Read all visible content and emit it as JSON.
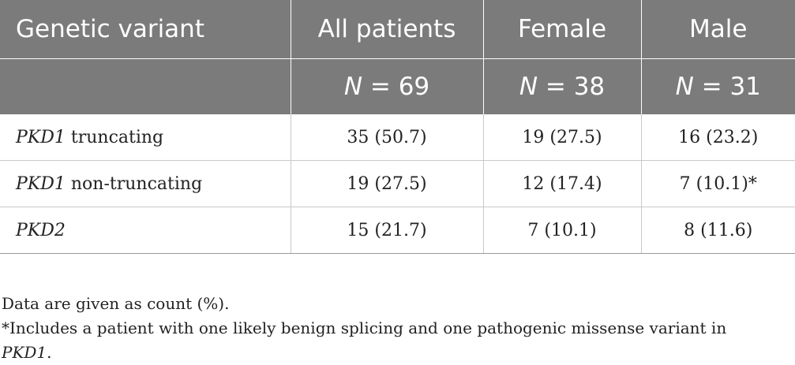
{
  "table": {
    "header": {
      "col1": "Genetic variant",
      "col2": "All patients",
      "col3": "Female",
      "col4": "Male",
      "n_all_label": "N",
      "n_all_value": " = 69",
      "n_female_label": "N",
      "n_female_value": " = 38",
      "n_male_label": "N",
      "n_male_value": " = 31"
    },
    "rows": [
      {
        "gene": "PKD1",
        "suffix": " truncating",
        "all": "35 (50.7)",
        "female": "19 (27.5)",
        "male": "16 (23.2)"
      },
      {
        "gene": "PKD1",
        "suffix": " non-truncating",
        "all": "19 (27.5)",
        "female": "12 (17.4)",
        "male": "7 (10.1)*"
      },
      {
        "gene": "PKD2",
        "suffix": "",
        "all": "15 (21.7)",
        "female": "7 (10.1)",
        "male": "8 (11.6)"
      }
    ]
  },
  "notes": {
    "line1": "Data are given as count (%).",
    "line2_text": "*Includes a patient with one likely benign splicing and one pathogenic missense variant in",
    "line3_gene": "PKD1",
    "line3_end": "."
  }
}
